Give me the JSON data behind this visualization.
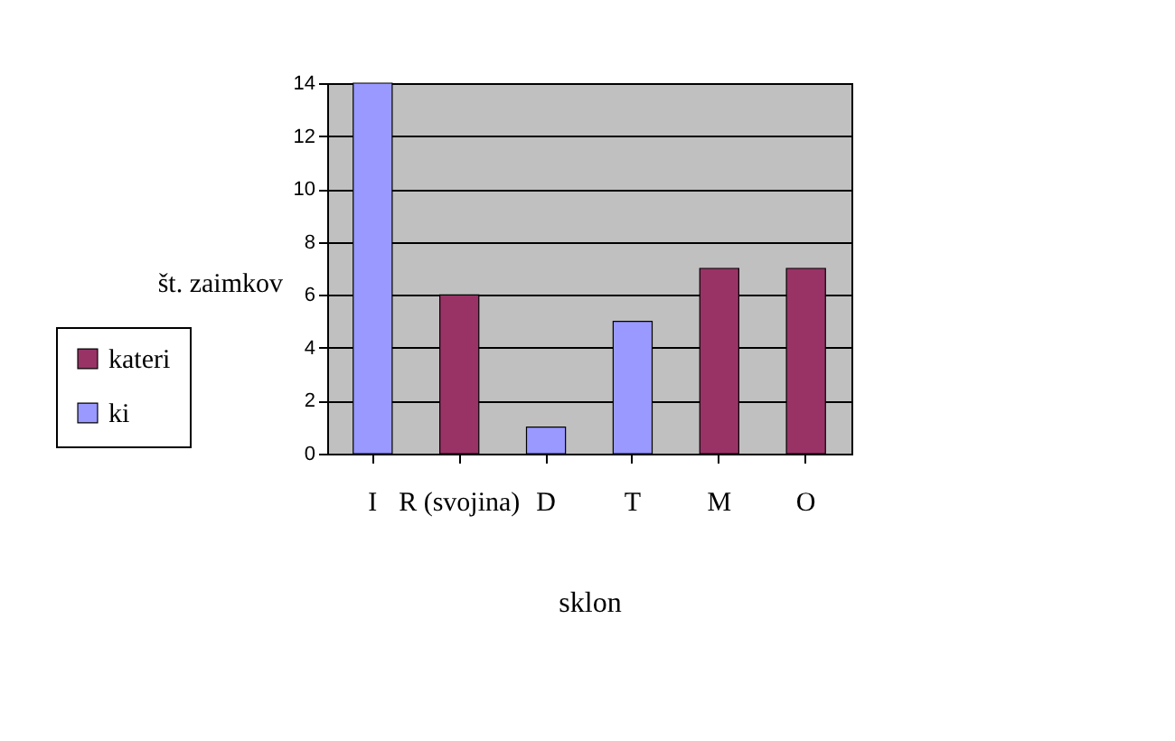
{
  "chart_data": {
    "type": "bar",
    "xlabel": "sklon",
    "ylabel": "št. zaimkov",
    "categories": [
      "I",
      "R (svojina)",
      "D",
      "T",
      "M",
      "O"
    ],
    "series": [
      {
        "name": "kateri",
        "color": "#993366",
        "values": [
          null,
          6,
          null,
          null,
          7,
          7
        ]
      },
      {
        "name": "ki",
        "color": "#9999ff",
        "values": [
          14,
          null,
          1,
          5,
          null,
          null
        ]
      }
    ],
    "ylim": [
      0,
      14
    ],
    "yticks": [
      0,
      2,
      4,
      6,
      8,
      10,
      12,
      14
    ],
    "grid": "y",
    "legend": "left"
  }
}
